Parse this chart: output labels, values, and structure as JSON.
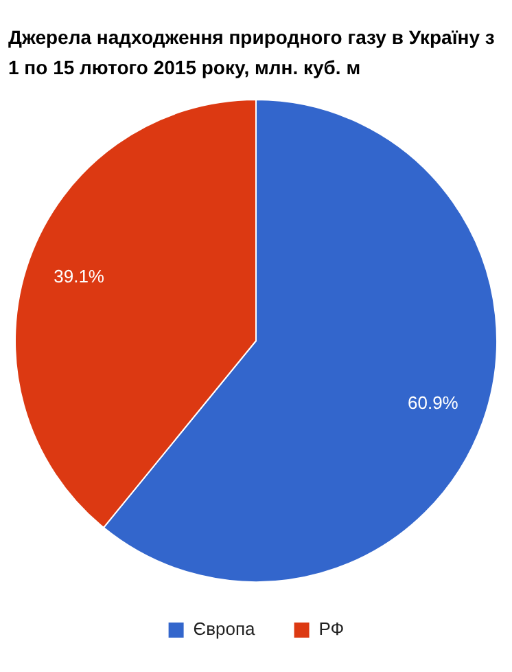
{
  "chart_data": {
    "type": "pie",
    "title": "Джерела надходження природного газу в Україну з 1 по 15 лютого 2015 року, млн. куб. м",
    "categories": [
      "Європа",
      "РФ"
    ],
    "values": [
      60.9,
      39.1
    ],
    "colors": [
      "#3366cc",
      "#dc3912"
    ],
    "value_labels": [
      "60.9%",
      "39.1%"
    ],
    "legend": "bottom"
  }
}
